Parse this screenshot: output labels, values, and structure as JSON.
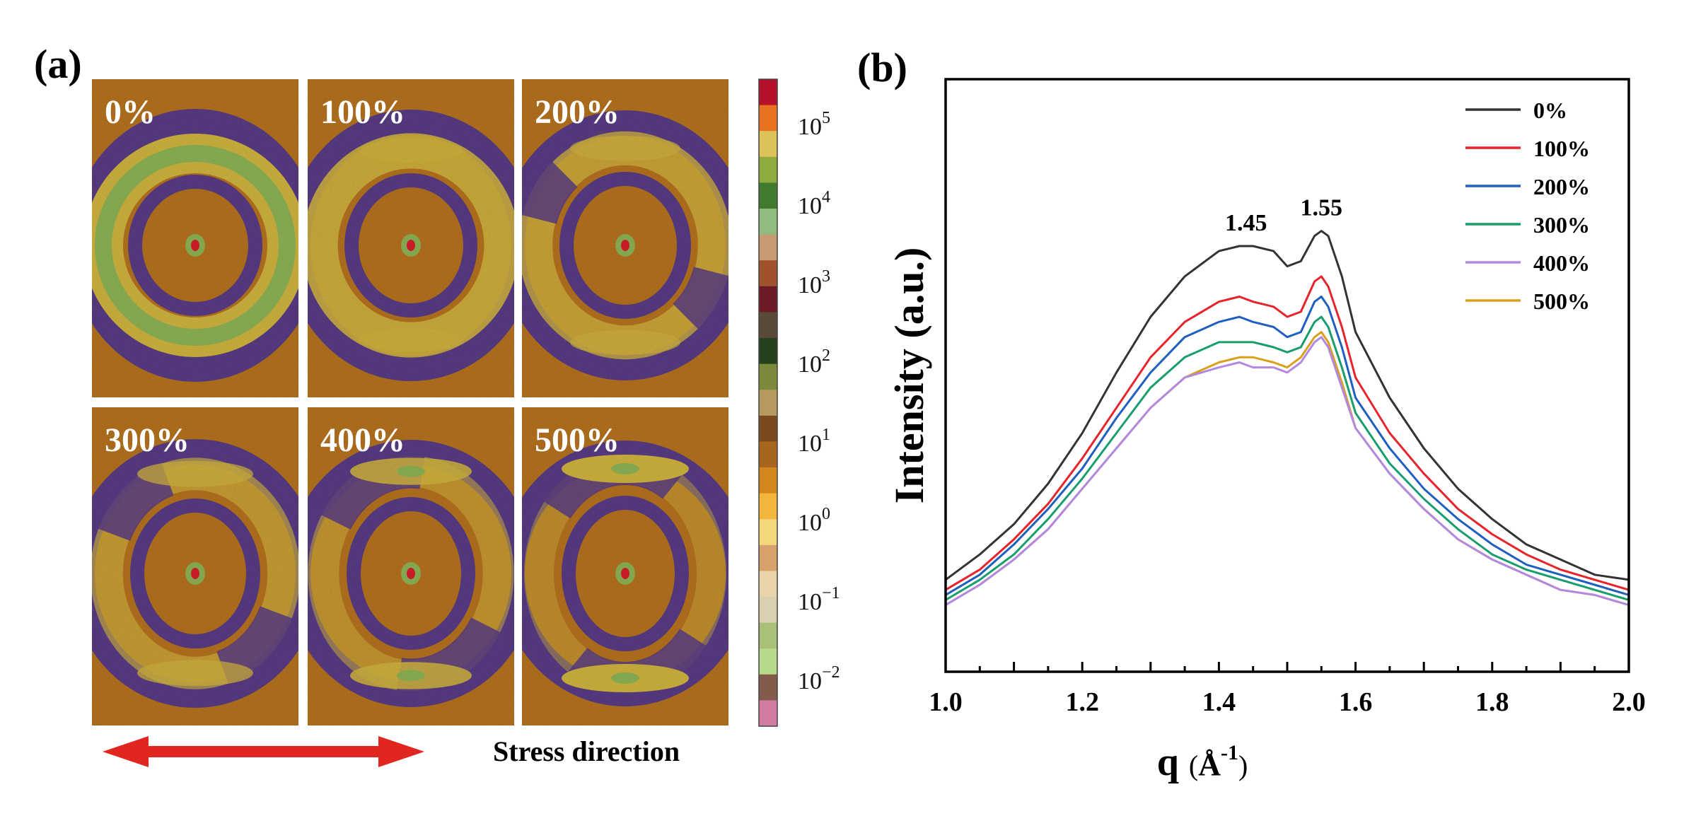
{
  "panel_a": {
    "label": "(a)",
    "tiles": [
      {
        "label": "0%",
        "strain": 0
      },
      {
        "label": "100%",
        "strain": 100
      },
      {
        "label": "200%",
        "strain": 200
      },
      {
        "label": "300%",
        "strain": 300
      },
      {
        "label": "400%",
        "strain": 400
      },
      {
        "label": "500%",
        "strain": 500
      }
    ],
    "colorbar": {
      "ticks": [
        {
          "base": "10",
          "exp": "5"
        },
        {
          "base": "10",
          "exp": "4"
        },
        {
          "base": "10",
          "exp": "3"
        },
        {
          "base": "10",
          "exp": "2"
        },
        {
          "base": "10",
          "exp": "1"
        },
        {
          "base": "10",
          "exp": "0"
        },
        {
          "base": "10",
          "exp": "−1"
        },
        {
          "base": "10",
          "exp": "−2"
        }
      ],
      "colors": [
        "#b5112a",
        "#e8721f",
        "#ddc25a",
        "#8eab3f",
        "#3f7a2f",
        "#8fbb7e",
        "#c79a73",
        "#a0522d",
        "#6b1a26",
        "#5a4a3a",
        "#24401e",
        "#7a8a3a",
        "#b89a5e",
        "#7a4a1e",
        "#a8651e",
        "#d4871c",
        "#f1b53b",
        "#f4d77a",
        "#d8a06a",
        "#e8d4a8",
        "#d9d0b0",
        "#a8c078",
        "#b8d88a",
        "#845a4c",
        "#d17ba0"
      ]
    },
    "arrow_label": "Stress direction",
    "colors": {
      "background": "#b8741f",
      "ring_purple": "#5a3d86",
      "ring_yellow": "#d3b640",
      "ring_green": "#8fb556",
      "beam_red": "#d8202a",
      "arrow": "#e0261e"
    }
  },
  "panel_b": {
    "label": "(b)",
    "chart_data": {
      "type": "line",
      "xlabel": "q",
      "xlabel_unit": "Å",
      "xlabel_exp": "-1",
      "ylabel": "Intensity (a.u.)",
      "xlim": [
        1.0,
        2.0
      ],
      "ylim": [
        0,
        1
      ],
      "xticks": [
        "1.0",
        "1.2",
        "1.4",
        "1.6",
        "1.8",
        "2.0"
      ],
      "x": [
        1.0,
        1.05,
        1.1,
        1.15,
        1.2,
        1.25,
        1.3,
        1.35,
        1.4,
        1.43,
        1.45,
        1.48,
        1.5,
        1.52,
        1.54,
        1.55,
        1.56,
        1.58,
        1.6,
        1.65,
        1.7,
        1.75,
        1.8,
        1.85,
        1.9,
        1.95,
        2.0
      ],
      "series": [
        {
          "name": "0%",
          "color": "#333333",
          "values": [
            0.14,
            0.19,
            0.25,
            0.33,
            0.43,
            0.55,
            0.66,
            0.74,
            0.79,
            0.8,
            0.8,
            0.79,
            0.76,
            0.77,
            0.82,
            0.83,
            0.82,
            0.74,
            0.63,
            0.5,
            0.4,
            0.32,
            0.26,
            0.21,
            0.18,
            0.15,
            0.14
          ]
        },
        {
          "name": "100%",
          "color": "#e8232b",
          "values": [
            0.12,
            0.16,
            0.22,
            0.29,
            0.38,
            0.48,
            0.58,
            0.65,
            0.69,
            0.7,
            0.69,
            0.68,
            0.66,
            0.67,
            0.73,
            0.74,
            0.72,
            0.64,
            0.54,
            0.43,
            0.35,
            0.28,
            0.23,
            0.19,
            0.16,
            0.14,
            0.12
          ]
        },
        {
          "name": "200%",
          "color": "#1f5fbf",
          "values": [
            0.11,
            0.15,
            0.21,
            0.28,
            0.36,
            0.46,
            0.55,
            0.62,
            0.65,
            0.66,
            0.65,
            0.64,
            0.62,
            0.63,
            0.69,
            0.7,
            0.68,
            0.6,
            0.5,
            0.4,
            0.32,
            0.26,
            0.21,
            0.17,
            0.15,
            0.13,
            0.11
          ]
        },
        {
          "name": "300%",
          "color": "#179e6b",
          "values": [
            0.1,
            0.14,
            0.19,
            0.26,
            0.34,
            0.43,
            0.52,
            0.58,
            0.61,
            0.61,
            0.61,
            0.6,
            0.59,
            0.6,
            0.65,
            0.66,
            0.64,
            0.56,
            0.47,
            0.37,
            0.3,
            0.24,
            0.19,
            0.16,
            0.14,
            0.12,
            0.1
          ]
        },
        {
          "name": "400%",
          "color": "#b388e0",
          "values": [
            0.09,
            0.13,
            0.18,
            0.24,
            0.32,
            0.4,
            0.48,
            0.54,
            0.56,
            0.57,
            0.56,
            0.56,
            0.55,
            0.57,
            0.61,
            0.62,
            0.6,
            0.52,
            0.44,
            0.35,
            0.28,
            0.22,
            0.18,
            0.15,
            0.12,
            0.11,
            0.09
          ]
        },
        {
          "name": "500%",
          "color": "#d9a01a",
          "values": [
            0.09,
            0.13,
            0.18,
            0.24,
            0.32,
            0.4,
            0.48,
            0.54,
            0.57,
            0.58,
            0.58,
            0.57,
            0.56,
            0.58,
            0.62,
            0.63,
            0.61,
            0.53,
            0.44,
            0.35,
            0.28,
            0.22,
            0.18,
            0.15,
            0.12,
            0.11,
            0.09
          ]
        }
      ],
      "annotations": [
        {
          "text": "1.45",
          "x": 1.45
        },
        {
          "text": "1.55",
          "x": 1.55
        }
      ],
      "legend_position": "top-right"
    }
  }
}
